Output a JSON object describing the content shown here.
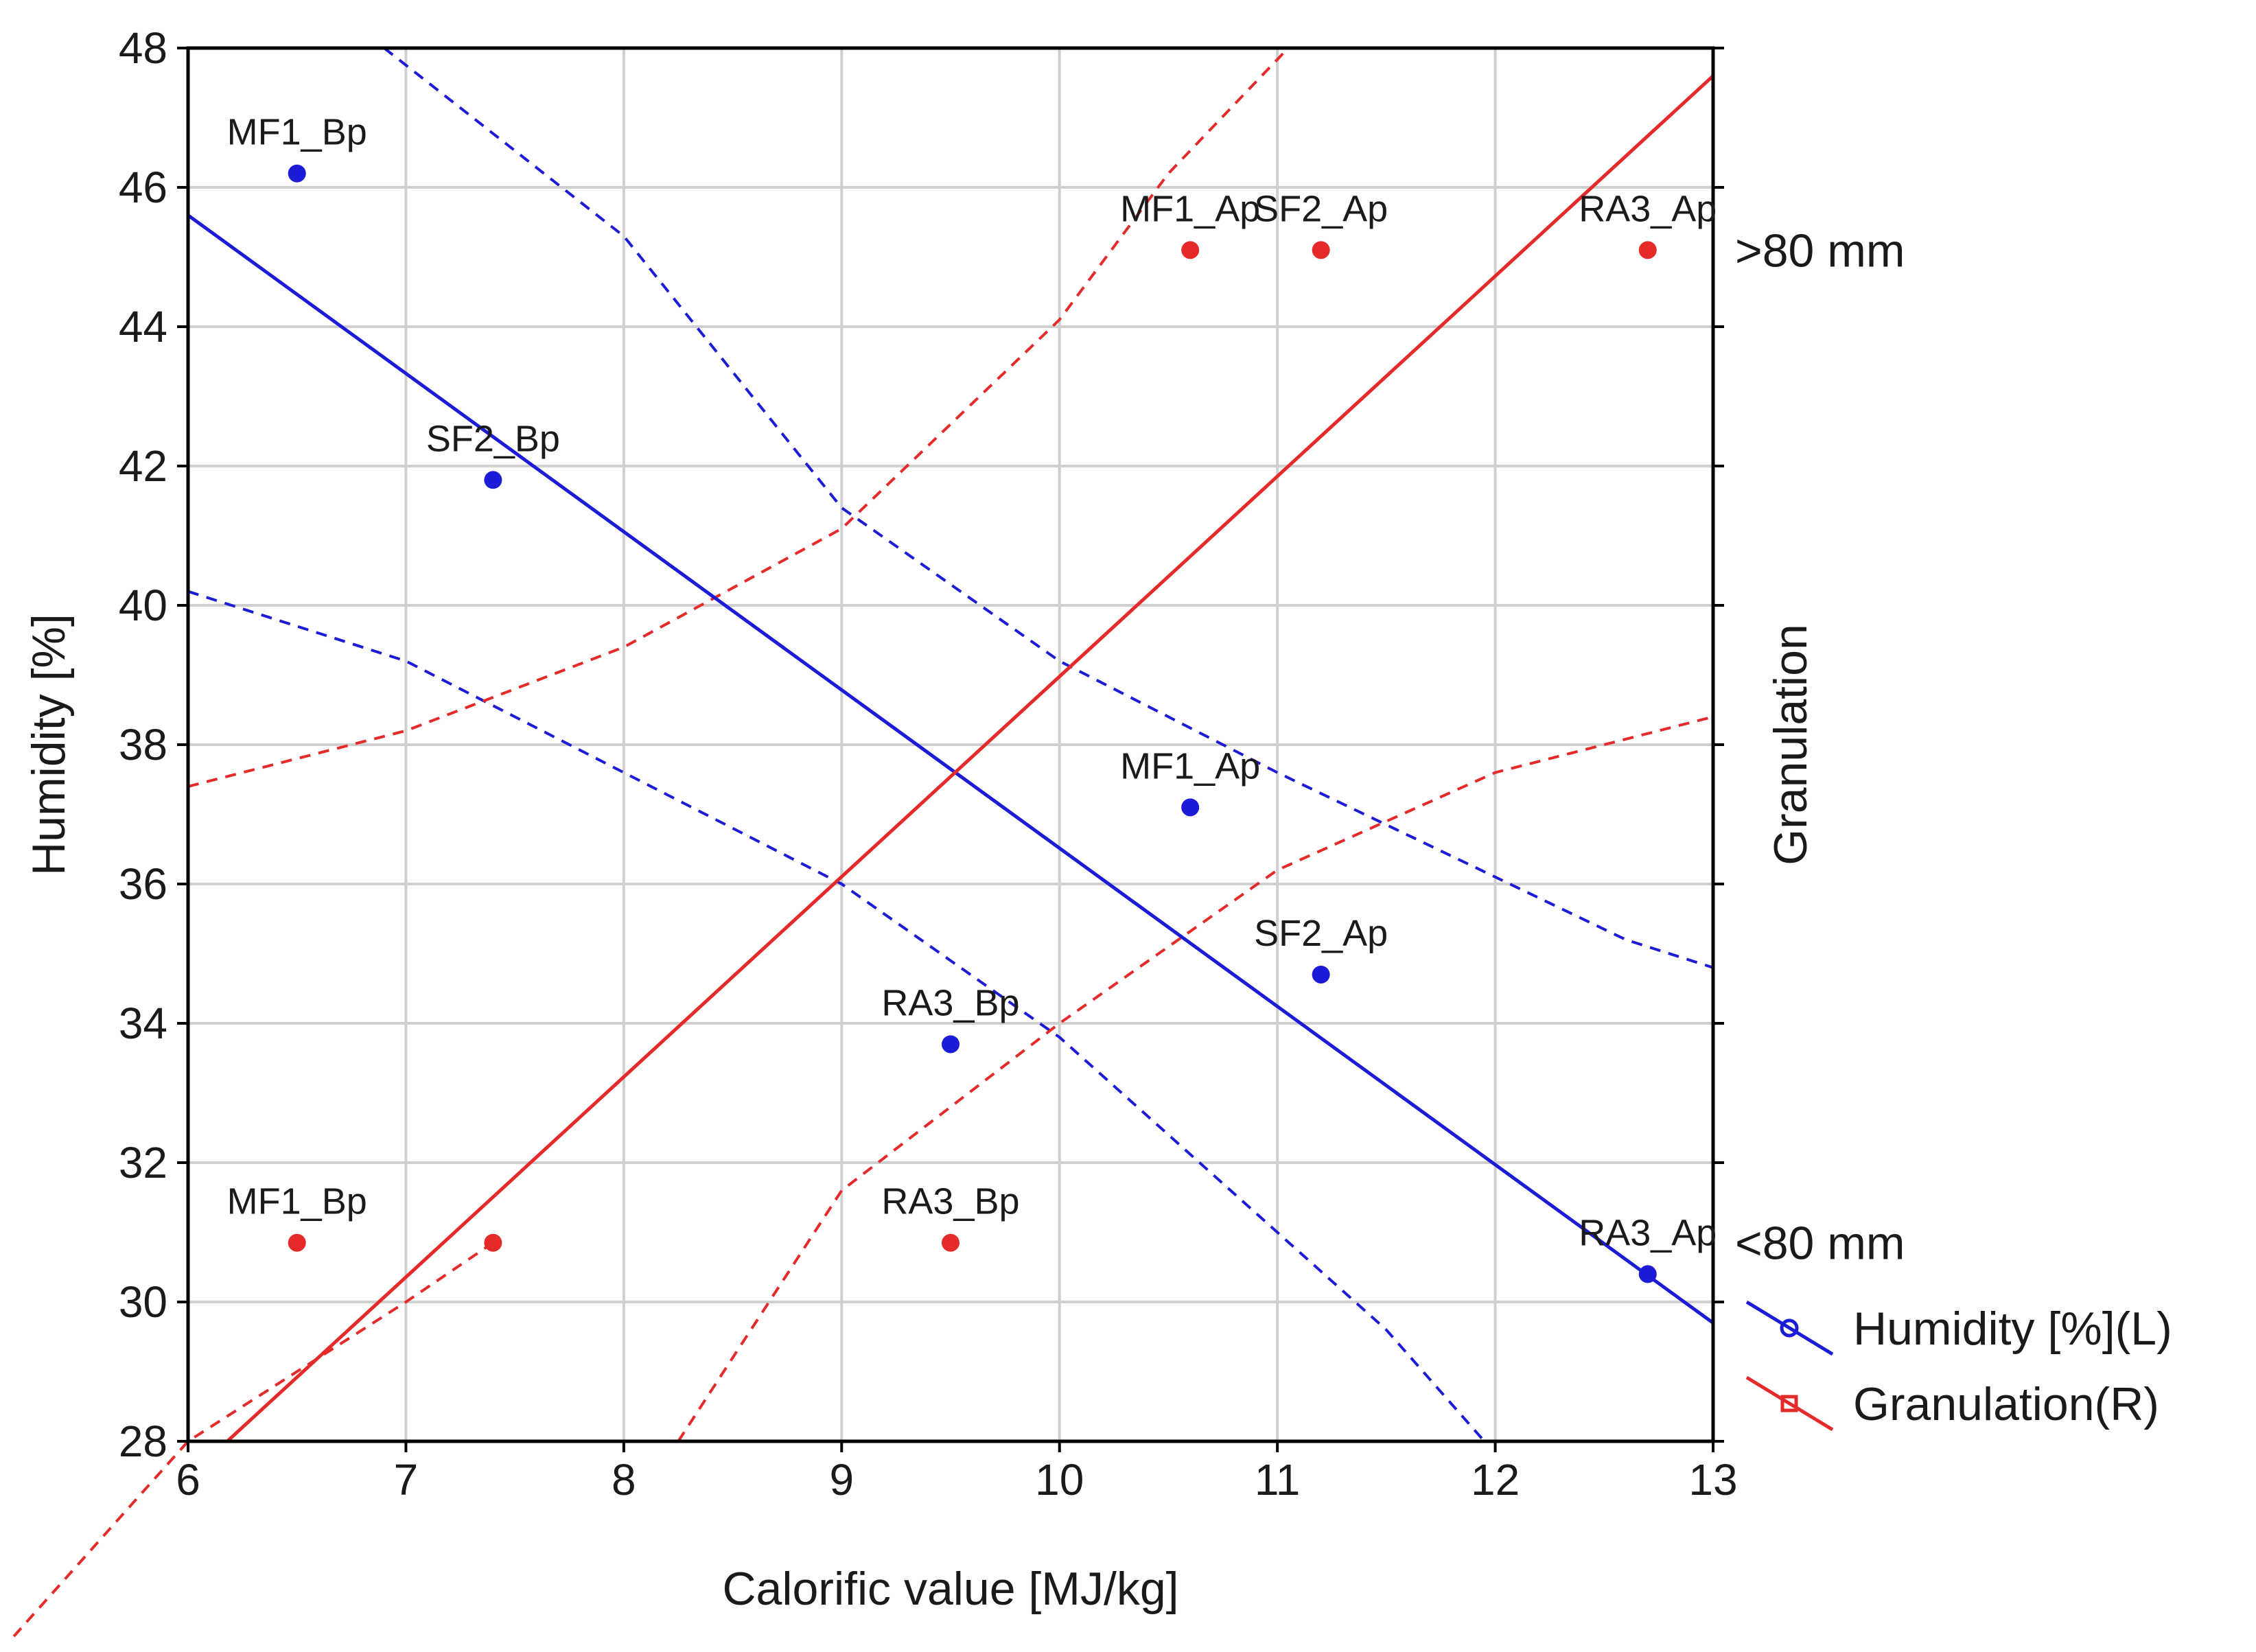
{
  "chart_data": {
    "type": "scatter",
    "xlabel": "Calorific value [MJ/kg]",
    "ylabel": "Humidity [%]",
    "y2label": "Granulation",
    "xlim": [
      6,
      13
    ],
    "ylim": [
      28,
      48
    ],
    "x_ticks": [
      6,
      7,
      8,
      9,
      10,
      11,
      12,
      13
    ],
    "y_ticks": [
      28,
      30,
      32,
      34,
      36,
      38,
      40,
      42,
      44,
      46,
      48
    ],
    "y2_categories": [
      {
        "label": ">80 mm",
        "y_left_equiv": 45.1
      },
      {
        "label": "<80 mm",
        "y_left_equiv": 30.85
      }
    ],
    "grid": true,
    "legend_position": "bottom-right",
    "series": [
      {
        "name": "Humidity [%](L)",
        "color": "#1c1cd6",
        "marker": "circle",
        "points": [
          {
            "label": "MF1_Bp",
            "x": 6.5,
            "y": 46.2
          },
          {
            "label": "SF2_Bp",
            "x": 7.4,
            "y": 41.8
          },
          {
            "label": "MF1_Ap",
            "x": 10.6,
            "y": 37.1
          },
          {
            "label": "SF2_Ap",
            "x": 11.2,
            "y": 34.7
          },
          {
            "label": "RA3_Bp",
            "x": 9.5,
            "y": 33.7
          },
          {
            "label": "RA3_Ap",
            "x": 12.7,
            "y": 30.4
          }
        ],
        "fit": [
          [
            6,
            45.6
          ],
          [
            13,
            29.7
          ]
        ],
        "ci_upper": [
          [
            6.9,
            48.0
          ],
          [
            8.0,
            45.3
          ],
          [
            9.0,
            41.4
          ],
          [
            10.0,
            39.2
          ],
          [
            11.0,
            37.6
          ],
          [
            12.0,
            36.1
          ],
          [
            12.6,
            35.2
          ],
          [
            13.0,
            34.8
          ]
        ],
        "ci_lower": [
          [
            6.0,
            40.2
          ],
          [
            7.0,
            39.2
          ],
          [
            8.0,
            37.6
          ],
          [
            9.0,
            36.0
          ],
          [
            10.0,
            33.8
          ],
          [
            11.0,
            31.0
          ],
          [
            11.5,
            29.6
          ],
          [
            11.95,
            28.0
          ]
        ]
      },
      {
        "name": "Granulation(R)",
        "color": "#e52a2a",
        "marker": "square",
        "points": [
          {
            "label": "MF1_Ap",
            "x": 10.6,
            "y": 45.1
          },
          {
            "label": "SF2_Ap",
            "x": 11.2,
            "y": 45.1
          },
          {
            "label": "RA3_Ap",
            "x": 12.7,
            "y": 45.1
          },
          {
            "label": "MF1_Bp",
            "x": 6.5,
            "y": 30.85
          },
          {
            "label": "",
            "x": 7.4,
            "y": 30.85
          },
          {
            "label": "RA3_Bp",
            "x": 9.5,
            "y": 30.85
          }
        ],
        "fit": [
          [
            6.18,
            28.0
          ],
          [
            13,
            47.6
          ]
        ],
        "ci_upper": [
          [
            6.0,
            37.4
          ],
          [
            7.0,
            38.2
          ],
          [
            8.0,
            39.4
          ],
          [
            9.0,
            41.1
          ],
          [
            10.0,
            44.1
          ],
          [
            10.5,
            46.2
          ],
          [
            11.05,
            48.0
          ]
        ],
        "ci_lower": [
          [
            8.25,
            28.0
          ],
          [
            9.0,
            31.6
          ],
          [
            10.0,
            34.0
          ],
          [
            11.0,
            36.2
          ],
          [
            12.0,
            37.6
          ],
          [
            13.0,
            38.4
          ]
        ],
        "ci_lower_extrapolated": [
          [
            5.2,
            25.2
          ],
          [
            6.0,
            28.0
          ],
          [
            7.0,
            30.0
          ],
          [
            7.4,
            30.85
          ]
        ]
      }
    ]
  }
}
